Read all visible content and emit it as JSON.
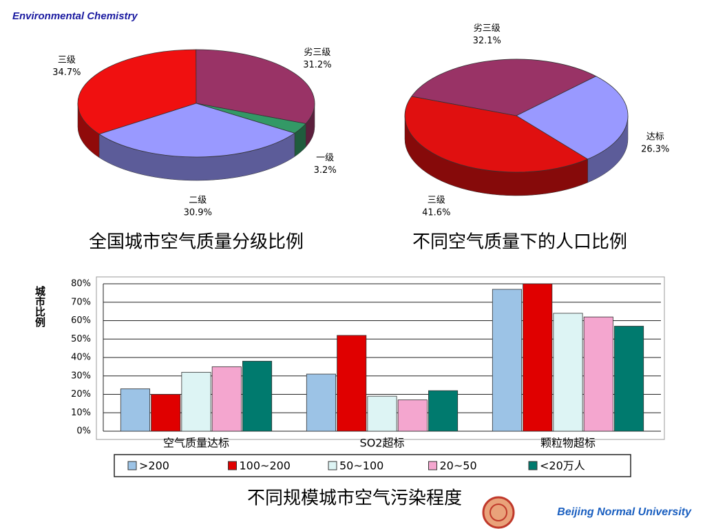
{
  "header": {
    "title": "Environmental Chemistry"
  },
  "footer": {
    "text": "Beijing Normal University"
  },
  "chart_data": [
    {
      "type": "pie",
      "title": "全国城市空气质量分级比例",
      "categories": [
        "三级",
        "劣三级",
        "一级",
        "二级"
      ],
      "values": [
        34.7,
        31.2,
        3.2,
        30.9
      ],
      "value_labels": [
        "34.7%",
        "31.2%",
        "3.2%",
        "30.9%"
      ],
      "colors": [
        "#f01010",
        "#993366",
        "#339966",
        "#9999ff"
      ]
    },
    {
      "type": "pie",
      "title": "不同空气质量下的人口比例",
      "categories": [
        "劣三级",
        "达标",
        "三级"
      ],
      "values": [
        32.1,
        26.3,
        41.6
      ],
      "value_labels": [
        "32.1%",
        "26.3%",
        "41.6%"
      ],
      "colors": [
        "#993366",
        "#9999ff",
        "#e01010"
      ]
    },
    {
      "type": "bar",
      "title": "不同规模城市空气污染程度",
      "y_label": "城市比例",
      "categories": [
        "空气质量达标",
        "SO2超标",
        "颗粒物超标"
      ],
      "series": [
        {
          "name": ">200",
          "color": "#9cc3e6",
          "values": [
            23,
            31,
            77
          ]
        },
        {
          "name": "100~200",
          "color": "#e00000",
          "values": [
            20,
            52,
            80
          ]
        },
        {
          "name": "50~100",
          "color": "#ddf4f4",
          "values": [
            32,
            19,
            64
          ]
        },
        {
          "name": "20~50",
          "color": "#f4a6cf",
          "values": [
            35,
            17,
            62
          ]
        },
        {
          "name": "<20万人",
          "color": "#007a6e",
          "values": [
            38,
            22,
            57
          ]
        }
      ],
      "ylim": [
        0,
        80
      ],
      "yticks": [
        {
          "value": 0,
          "label": "0%"
        },
        {
          "value": 10,
          "label": "10%"
        },
        {
          "value": 20,
          "label": "20%"
        },
        {
          "value": 30,
          "label": "30%"
        },
        {
          "value": 40,
          "label": "40%"
        },
        {
          "value": 50,
          "label": "50%"
        },
        {
          "value": 60,
          "label": "60%"
        },
        {
          "value": 70,
          "label": "70%"
        },
        {
          "value": 80,
          "label": "80%"
        }
      ],
      "grid": true
    }
  ]
}
